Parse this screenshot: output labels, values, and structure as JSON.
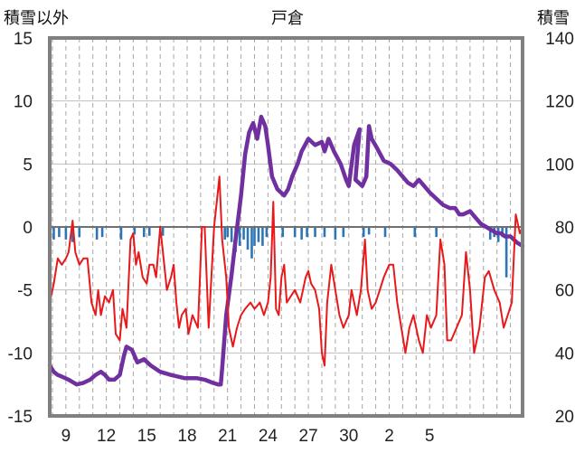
{
  "chart_data": {
    "type": "line",
    "title": "戸倉",
    "left_axis_label": "積雪以外",
    "right_axis_label": "積雪",
    "left_ylim": [
      -15,
      15
    ],
    "left_ticks": [
      "15",
      "10",
      "5",
      "0",
      "-5",
      "-10",
      "-15"
    ],
    "left_tick_values": [
      15,
      10,
      5,
      0,
      -5,
      -10,
      -15
    ],
    "right_ylim": [
      20,
      140
    ],
    "right_ticks": [
      "140",
      "120",
      "100",
      "80",
      "60",
      "40",
      "20"
    ],
    "right_tick_values": [
      140,
      120,
      100,
      80,
      60,
      40,
      20
    ],
    "x_range": [
      7.8,
      42.9
    ],
    "x_ticks": [
      {
        "label": "9",
        "day": 9
      },
      {
        "label": "12",
        "day": 12
      },
      {
        "label": "15",
        "day": 15
      },
      {
        "label": "18",
        "day": 18
      },
      {
        "label": "21",
        "day": 21
      },
      {
        "label": "24",
        "day": 24
      },
      {
        "label": "27",
        "day": 27
      },
      {
        "label": "30",
        "day": 30
      },
      {
        "label": "2",
        "day": 33
      },
      {
        "label": "5",
        "day": 36
      }
    ],
    "grid_vertical": "dashed, daily",
    "grid_horizontal": "solid at tick values",
    "colors": {
      "temperature": "#e8191a",
      "snow_depth": "#7030a0",
      "snowfall": "#2e75b6",
      "zero_line": "#707070",
      "frame": "#808080"
    },
    "series": [
      {
        "axis": "right",
        "color": "#7030a0",
        "points": [
          [
            7.8,
            36
          ],
          [
            8.1,
            34
          ],
          [
            8.4,
            33
          ],
          [
            8.7,
            32.5
          ],
          [
            9.2,
            31.5
          ],
          [
            9.8,
            30
          ],
          [
            10.3,
            30.5
          ],
          [
            10.8,
            31.5
          ],
          [
            11.2,
            33
          ],
          [
            11.6,
            34
          ],
          [
            11.9,
            33
          ],
          [
            12.2,
            31.5
          ],
          [
            12.6,
            31.5
          ],
          [
            13,
            33
          ],
          [
            13.3,
            39
          ],
          [
            13.5,
            42
          ],
          [
            13.9,
            41
          ],
          [
            14.3,
            37
          ],
          [
            14.8,
            38
          ],
          [
            15.3,
            36
          ],
          [
            16,
            34
          ],
          [
            16.8,
            33
          ],
          [
            17.8,
            32
          ],
          [
            18.7,
            32
          ],
          [
            19.3,
            31.5
          ],
          [
            19.9,
            30.5
          ],
          [
            20.3,
            30
          ],
          [
            20.5,
            30
          ],
          [
            20.6,
            35
          ],
          [
            20.9,
            52
          ],
          [
            21.3,
            65
          ],
          [
            21.6,
            76
          ],
          [
            22,
            90
          ],
          [
            22.3,
            103
          ],
          [
            22.6,
            110
          ],
          [
            22.9,
            113
          ],
          [
            23.2,
            108
          ],
          [
            23.5,
            115
          ],
          [
            23.8,
            112
          ],
          [
            24,
            106
          ],
          [
            24.3,
            96
          ],
          [
            24.7,
            92
          ],
          [
            25.2,
            90
          ],
          [
            25.5,
            92
          ],
          [
            25.8,
            96
          ],
          [
            26.2,
            100
          ],
          [
            26.5,
            104
          ],
          [
            27,
            108
          ],
          [
            27.5,
            106
          ],
          [
            28,
            107
          ],
          [
            28.2,
            104
          ],
          [
            28.5,
            108
          ],
          [
            28.9,
            104
          ],
          [
            29.4,
            100
          ],
          [
            29.8,
            95
          ],
          [
            30,
            93
          ],
          [
            30.4,
            106
          ],
          [
            30.8,
            111
          ],
          [
            30.5,
            95
          ],
          [
            31,
            93
          ],
          [
            31.3,
            96
          ],
          [
            31.5,
            112
          ],
          [
            31.7,
            108
          ],
          [
            32.1,
            105
          ],
          [
            32.6,
            101
          ],
          [
            33.1,
            100
          ],
          [
            33.6,
            98
          ],
          [
            34,
            96
          ],
          [
            34.4,
            94
          ],
          [
            34.8,
            93
          ],
          [
            35.2,
            95
          ],
          [
            35.6,
            93
          ],
          [
            36,
            91
          ],
          [
            36.5,
            89
          ],
          [
            37,
            87
          ],
          [
            37.5,
            86
          ],
          [
            37.9,
            86
          ],
          [
            38.2,
            84
          ],
          [
            38.5,
            84
          ],
          [
            39,
            85
          ],
          [
            39.4,
            83
          ],
          [
            39.8,
            81
          ],
          [
            40.2,
            80
          ],
          [
            40.6,
            79
          ],
          [
            41,
            78
          ],
          [
            41.3,
            78
          ],
          [
            41.6,
            77
          ],
          [
            42,
            77
          ],
          [
            42.5,
            75
          ],
          [
            42.9,
            74
          ]
        ]
      },
      {
        "axis": "left",
        "color": "#e8191a",
        "points": [
          [
            7.8,
            -6
          ],
          [
            8.1,
            -4.5
          ],
          [
            8.4,
            -2.5
          ],
          [
            8.7,
            -3
          ],
          [
            9,
            -2.5
          ],
          [
            9.2,
            -2
          ],
          [
            9.5,
            0.5
          ],
          [
            9.7,
            -2
          ],
          [
            10,
            -3
          ],
          [
            10.3,
            -2.5
          ],
          [
            10.6,
            -2.5
          ],
          [
            10.9,
            -6
          ],
          [
            11.2,
            -7
          ],
          [
            11.4,
            -5
          ],
          [
            11.6,
            -7
          ],
          [
            11.9,
            -5.5
          ],
          [
            12.2,
            -6
          ],
          [
            12.5,
            -5
          ],
          [
            12.7,
            -8.5
          ],
          [
            13,
            -9
          ],
          [
            13.2,
            -6.5
          ],
          [
            13.5,
            -8
          ],
          [
            13.8,
            -1
          ],
          [
            14,
            -0.5
          ],
          [
            14.2,
            -3
          ],
          [
            14.4,
            -2
          ],
          [
            14.7,
            -4
          ],
          [
            15,
            -4.5
          ],
          [
            15.2,
            -3
          ],
          [
            15.5,
            -3
          ],
          [
            15.7,
            -4
          ],
          [
            16,
            0
          ],
          [
            16.2,
            -2
          ],
          [
            16.5,
            -5
          ],
          [
            16.8,
            -4
          ],
          [
            17,
            -3
          ],
          [
            17.2,
            -6
          ],
          [
            17.4,
            -8
          ],
          [
            17.6,
            -7
          ],
          [
            17.9,
            -6.5
          ],
          [
            18.1,
            -8.5
          ],
          [
            18.4,
            -7
          ],
          [
            18.8,
            -8
          ],
          [
            19.1,
            0
          ],
          [
            19.3,
            0
          ],
          [
            19.6,
            -8
          ],
          [
            20,
            0
          ],
          [
            20.2,
            2
          ],
          [
            20.4,
            4
          ],
          [
            20.6,
            -1
          ],
          [
            20.9,
            -4
          ],
          [
            21.1,
            -8
          ],
          [
            21.4,
            -9.5
          ],
          [
            21.7,
            -8
          ],
          [
            22,
            -7
          ],
          [
            22.3,
            -6.5
          ],
          [
            22.7,
            -6
          ],
          [
            23,
            -6.5
          ],
          [
            23.4,
            -6
          ],
          [
            23.7,
            -7
          ],
          [
            24,
            -6
          ],
          [
            24.2,
            -4
          ],
          [
            24.4,
            2
          ],
          [
            24.6,
            -6.5
          ],
          [
            24.8,
            -7
          ],
          [
            25,
            -4
          ],
          [
            25.2,
            -3
          ],
          [
            25.4,
            -6
          ],
          [
            25.7,
            -5.5
          ],
          [
            26,
            -5
          ],
          [
            26.4,
            -6
          ],
          [
            26.8,
            -4
          ],
          [
            27,
            -3.5
          ],
          [
            27.2,
            -4.5
          ],
          [
            27.5,
            -5
          ],
          [
            27.8,
            -6.5
          ],
          [
            28,
            -10
          ],
          [
            28.2,
            -11
          ],
          [
            28.4,
            -6
          ],
          [
            28.7,
            -3
          ],
          [
            29,
            -5
          ],
          [
            29.3,
            -7
          ],
          [
            29.6,
            -8
          ],
          [
            30,
            -7
          ],
          [
            30.2,
            -5
          ],
          [
            30.4,
            -6
          ],
          [
            30.6,
            -7
          ],
          [
            30.9,
            -5
          ],
          [
            31.2,
            -1
          ],
          [
            31.4,
            -5
          ],
          [
            31.7,
            -6.5
          ],
          [
            32,
            -6
          ],
          [
            32.3,
            -5
          ],
          [
            32.6,
            -4
          ],
          [
            33,
            -3
          ],
          [
            33.3,
            -3
          ],
          [
            33.6,
            -6
          ],
          [
            33.9,
            -8
          ],
          [
            34.2,
            -10
          ],
          [
            34.5,
            -8
          ],
          [
            34.8,
            -7
          ],
          [
            35.2,
            -9
          ],
          [
            35.5,
            -10
          ],
          [
            35.8,
            -7
          ],
          [
            36.1,
            -8
          ],
          [
            36.5,
            -7
          ],
          [
            36.8,
            -1
          ],
          [
            37.1,
            -3
          ],
          [
            37.3,
            -9
          ],
          [
            37.6,
            -9
          ],
          [
            38,
            -8
          ],
          [
            38.4,
            -7
          ],
          [
            38.7,
            -2
          ],
          [
            39,
            -5
          ],
          [
            39.3,
            -10
          ],
          [
            39.7,
            -8
          ],
          [
            40.1,
            -4
          ],
          [
            40.4,
            -3.5
          ],
          [
            40.8,
            -5
          ],
          [
            41.2,
            -6
          ],
          [
            41.5,
            -8
          ],
          [
            41.8,
            -7
          ],
          [
            42.1,
            -6
          ],
          [
            42.4,
            1
          ],
          [
            42.7,
            -0.5
          ],
          [
            42.9,
            0
          ]
        ]
      },
      {
        "axis": "left",
        "type": "bar",
        "color": "#2e75b6",
        "points": [
          [
            8.1,
            -1
          ],
          [
            8.5,
            -0.8
          ],
          [
            9,
            -1
          ],
          [
            9.5,
            -1.2
          ],
          [
            10,
            -0.8
          ],
          [
            11.3,
            -1
          ],
          [
            11.7,
            -0.8
          ],
          [
            13.1,
            -1
          ],
          [
            14.1,
            -0.6
          ],
          [
            14.8,
            -0.8
          ],
          [
            15.2,
            -0.7
          ],
          [
            16.2,
            -0.7
          ],
          [
            20.8,
            -1
          ],
          [
            21,
            -0.8
          ],
          [
            21.3,
            -1.2
          ],
          [
            21.6,
            -2
          ],
          [
            21.9,
            -1.5
          ],
          [
            22.2,
            -1
          ],
          [
            22.5,
            -1.8
          ],
          [
            22.8,
            -2.5
          ],
          [
            23,
            -1.5
          ],
          [
            23.3,
            -1.2
          ],
          [
            23.6,
            -1.5
          ],
          [
            23.9,
            -0.8
          ],
          [
            25.1,
            -0.8
          ],
          [
            26,
            -0.8
          ],
          [
            26.5,
            -1
          ],
          [
            26.9,
            -0.8
          ],
          [
            27.5,
            -0.8
          ],
          [
            28.2,
            -0.8
          ],
          [
            29,
            -1
          ],
          [
            29.6,
            -0.8
          ],
          [
            31.1,
            -0.8
          ],
          [
            31.5,
            -0.6
          ],
          [
            32.7,
            -0.8
          ],
          [
            34.9,
            -0.8
          ],
          [
            36.5,
            -0.8
          ],
          [
            40.5,
            -1
          ],
          [
            40.8,
            -0.8
          ],
          [
            41.1,
            -1.2
          ],
          [
            41.4,
            -0.8
          ],
          [
            41.7,
            -4
          ]
        ]
      }
    ]
  }
}
